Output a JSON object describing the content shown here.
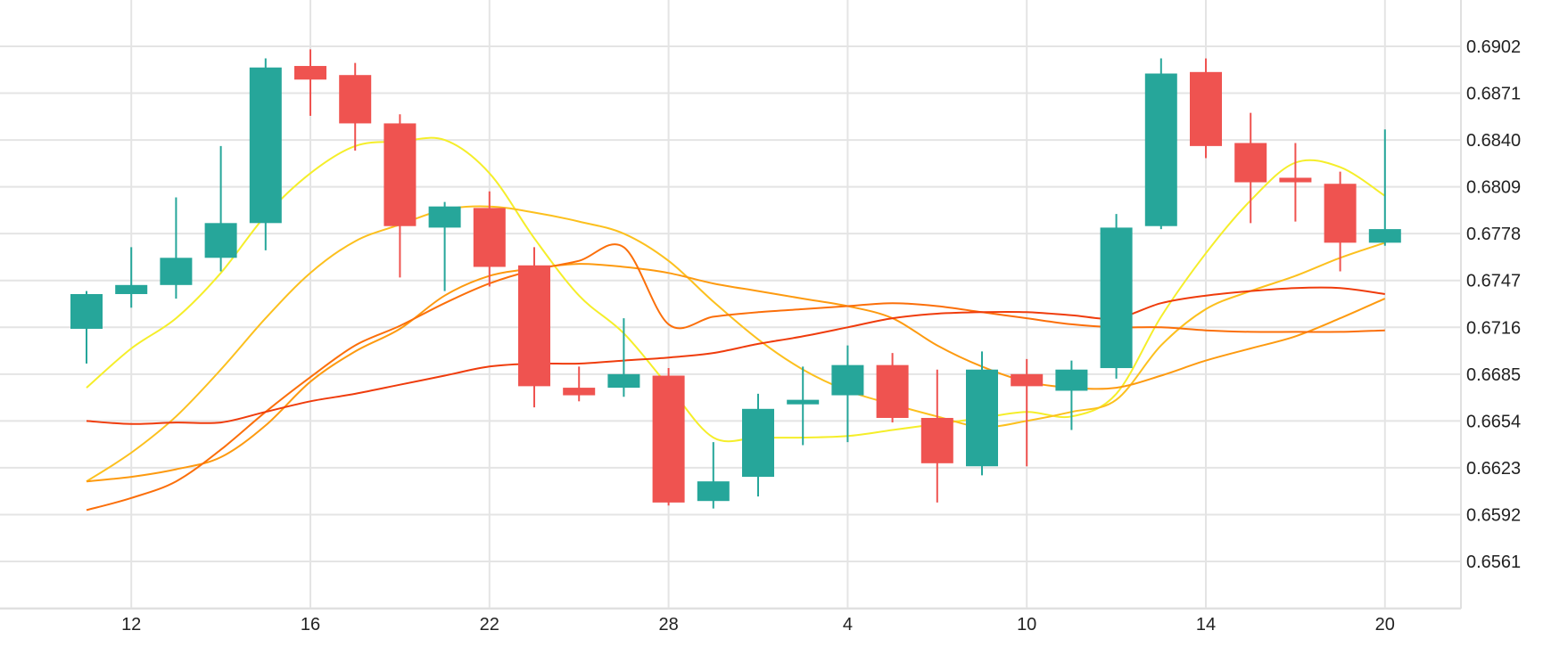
{
  "chart_data": {
    "type": "candlestick",
    "title": "",
    "xlabel": "",
    "ylabel": "",
    "x_tick_labels": [
      "12",
      "16",
      "22",
      "28",
      "4",
      "10",
      "14",
      "20"
    ],
    "y_tick_labels": [
      "0.6561",
      "0.6592",
      "0.6623",
      "0.6654",
      "0.6685",
      "0.6716",
      "0.6747",
      "0.6778",
      "0.6809",
      "0.6840",
      "0.6871",
      "0.6902"
    ],
    "ylim": [
      0.653,
      0.693
    ],
    "grid": true,
    "colors": {
      "up": "#26a69a",
      "down": "#ef5350"
    },
    "ohlc": [
      {
        "o": 0.6715,
        "h": 0.674,
        "l": 0.6692,
        "c": 0.6738
      },
      {
        "o": 0.6738,
        "h": 0.6769,
        "l": 0.6729,
        "c": 0.6744
      },
      {
        "o": 0.6744,
        "h": 0.6802,
        "l": 0.6735,
        "c": 0.6762
      },
      {
        "o": 0.6762,
        "h": 0.6836,
        "l": 0.6753,
        "c": 0.6785
      },
      {
        "o": 0.6785,
        "h": 0.6894,
        "l": 0.6767,
        "c": 0.6888
      },
      {
        "o": 0.6889,
        "h": 0.69,
        "l": 0.6856,
        "c": 0.688
      },
      {
        "o": 0.6883,
        "h": 0.6891,
        "l": 0.6833,
        "c": 0.6851
      },
      {
        "o": 0.6851,
        "h": 0.6857,
        "l": 0.6749,
        "c": 0.6783
      },
      {
        "o": 0.6782,
        "h": 0.6799,
        "l": 0.674,
        "c": 0.6796
      },
      {
        "o": 0.6795,
        "h": 0.6806,
        "l": 0.6743,
        "c": 0.6756
      },
      {
        "o": 0.6757,
        "h": 0.6769,
        "l": 0.6663,
        "c": 0.6677
      },
      {
        "o": 0.6676,
        "h": 0.669,
        "l": 0.6667,
        "c": 0.6671
      },
      {
        "o": 0.6676,
        "h": 0.6722,
        "l": 0.667,
        "c": 0.6685
      },
      {
        "o": 0.6684,
        "h": 0.6689,
        "l": 0.6598,
        "c": 0.66
      },
      {
        "o": 0.6601,
        "h": 0.664,
        "l": 0.6596,
        "c": 0.6614
      },
      {
        "o": 0.6617,
        "h": 0.6672,
        "l": 0.6604,
        "c": 0.6662
      },
      {
        "o": 0.6665,
        "h": 0.669,
        "l": 0.6638,
        "c": 0.6668
      },
      {
        "o": 0.6671,
        "h": 0.6704,
        "l": 0.664,
        "c": 0.6691
      },
      {
        "o": 0.6691,
        "h": 0.6699,
        "l": 0.6653,
        "c": 0.6656
      },
      {
        "o": 0.6656,
        "h": 0.6688,
        "l": 0.66,
        "c": 0.6626
      },
      {
        "o": 0.6624,
        "h": 0.67,
        "l": 0.6618,
        "c": 0.6688
      },
      {
        "o": 0.6685,
        "h": 0.6695,
        "l": 0.6624,
        "c": 0.6677
      },
      {
        "o": 0.6674,
        "h": 0.6694,
        "l": 0.6648,
        "c": 0.6688
      },
      {
        "o": 0.6689,
        "h": 0.6791,
        "l": 0.6682,
        "c": 0.6782
      },
      {
        "o": 0.6783,
        "h": 0.6894,
        "l": 0.6781,
        "c": 0.6884
      },
      {
        "o": 0.6885,
        "h": 0.6894,
        "l": 0.6828,
        "c": 0.6836
      },
      {
        "o": 0.6838,
        "h": 0.6858,
        "l": 0.6785,
        "c": 0.6812
      },
      {
        "o": 0.6815,
        "h": 0.6838,
        "l": 0.6786,
        "c": 0.6812
      },
      {
        "o": 0.6811,
        "h": 0.6819,
        "l": 0.6753,
        "c": 0.6772
      },
      {
        "o": 0.6772,
        "h": 0.6847,
        "l": 0.677,
        "c": 0.6781
      }
    ],
    "x_tick_candle_index": [
      1,
      5,
      9,
      13,
      17,
      21,
      25,
      29
    ],
    "series": [
      {
        "color": "#f5ee2a",
        "values": [
          0.6676,
          0.6702,
          0.6722,
          0.6752,
          0.679,
          0.6818,
          0.6836,
          0.6839,
          0.684,
          0.6818,
          0.6775,
          0.6737,
          0.6712,
          0.6677,
          0.6643,
          0.6643,
          0.6643,
          0.6644,
          0.6648,
          0.6652,
          0.6656,
          0.666,
          0.6657,
          0.6672,
          0.6723,
          0.6765,
          0.68,
          0.6825,
          0.6822,
          0.6803
        ]
      },
      {
        "color": "#fcc01e",
        "values": [
          0.6614,
          0.6633,
          0.6657,
          0.6688,
          0.6722,
          0.6752,
          0.6773,
          0.6784,
          0.6794,
          0.6796,
          0.6792,
          0.6786,
          0.6778,
          0.676,
          0.6733,
          0.6708,
          0.6688,
          0.6674,
          0.6665,
          0.6657,
          0.665,
          0.6654,
          0.666,
          0.6668,
          0.6704,
          0.6728,
          0.674,
          0.675,
          0.6762,
          0.6772
        ]
      },
      {
        "color": "#fd9a10",
        "values": [
          0.6614,
          0.6617,
          0.6622,
          0.663,
          0.6651,
          0.668,
          0.67,
          0.6715,
          0.6737,
          0.675,
          0.6755,
          0.6758,
          0.6756,
          0.6752,
          0.6745,
          0.674,
          0.6735,
          0.673,
          0.6722,
          0.6704,
          0.669,
          0.668,
          0.6676,
          0.6676,
          0.6684,
          0.6694,
          0.6702,
          0.671,
          0.6722,
          0.6735
        ]
      },
      {
        "color": "#fb6f0a",
        "values": [
          0.6595,
          0.6603,
          0.6614,
          0.6635,
          0.666,
          0.6683,
          0.6704,
          0.6717,
          0.6732,
          0.6745,
          0.6754,
          0.676,
          0.6769,
          0.6718,
          0.6723,
          0.6726,
          0.6728,
          0.673,
          0.6732,
          0.673,
          0.6726,
          0.6722,
          0.6718,
          0.6716,
          0.6716,
          0.6714,
          0.6713,
          0.6713,
          0.6713,
          0.6714
        ]
      },
      {
        "color": "#ef3c0c",
        "values": [
          0.6654,
          0.6652,
          0.6653,
          0.6653,
          0.666,
          0.6667,
          0.6672,
          0.6678,
          0.6684,
          0.669,
          0.6692,
          0.6692,
          0.6694,
          0.6696,
          0.6699,
          0.6705,
          0.671,
          0.6716,
          0.6722,
          0.6725,
          0.6726,
          0.6726,
          0.6724,
          0.6722,
          0.6732,
          0.6737,
          0.674,
          0.6742,
          0.6742,
          0.6738
        ]
      }
    ]
  }
}
